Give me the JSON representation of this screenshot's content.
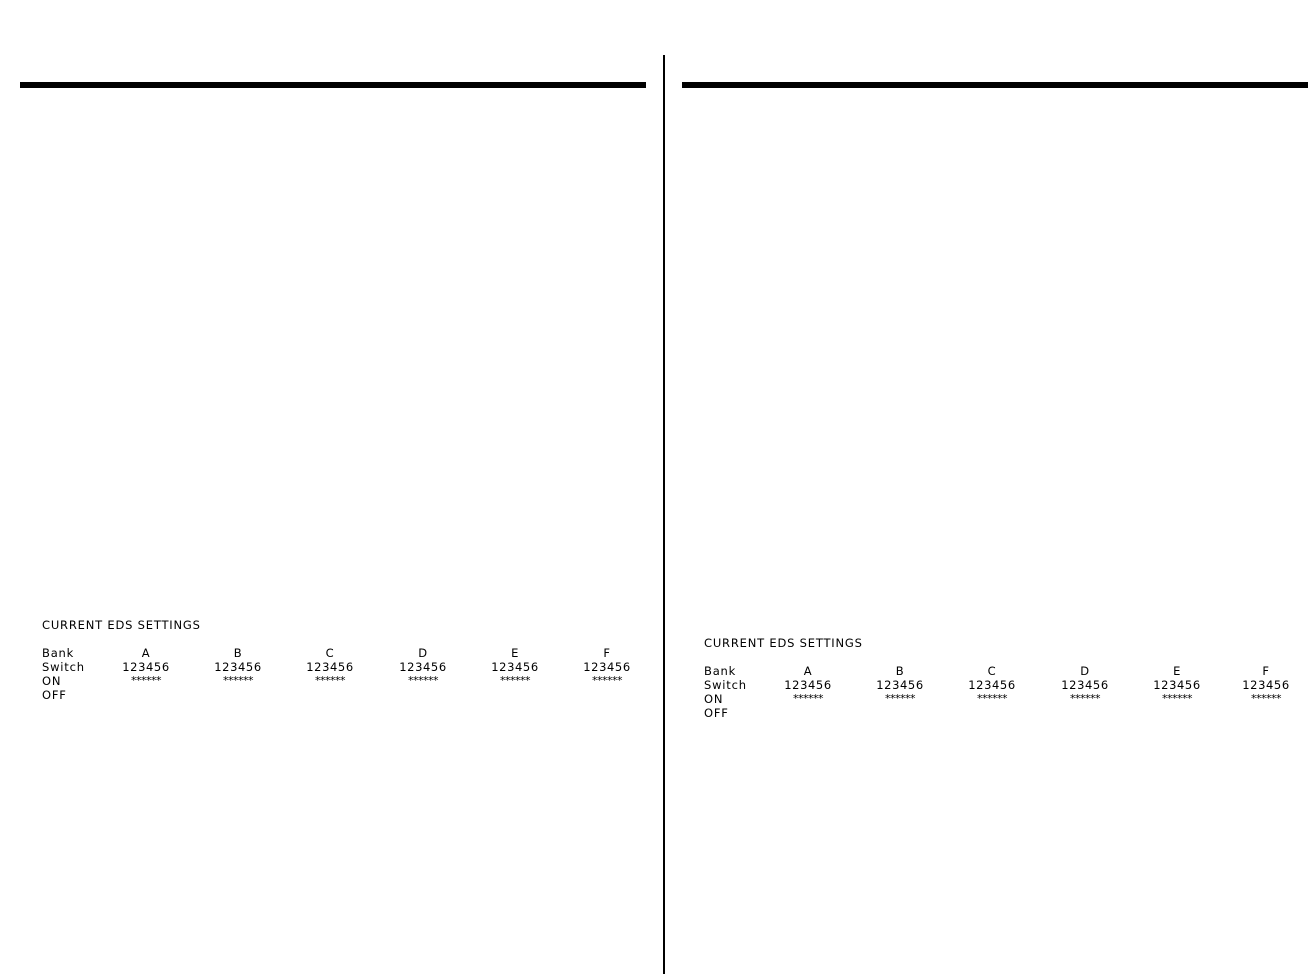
{
  "panels": [
    {
      "title": "CURRENT EDS SETTINGS",
      "row_labels": [
        "Bank",
        "Switch",
        "ON",
        "OFF"
      ],
      "banks": [
        {
          "name": "A",
          "switches": "123456",
          "on": "******"
        },
        {
          "name": "B",
          "switches": "123456",
          "on": "******"
        },
        {
          "name": "C",
          "switches": "123456",
          "on": "******"
        },
        {
          "name": "D",
          "switches": "123456",
          "on": "******"
        },
        {
          "name": "E",
          "switches": "123456",
          "on": "******"
        },
        {
          "name": "F",
          "switches": "123456",
          "on": "******"
        }
      ]
    },
    {
      "title": "CURRENT EDS SETTINGS",
      "row_labels": [
        "Bank",
        "Switch",
        "ON",
        "OFF"
      ],
      "banks": [
        {
          "name": "A",
          "switches": "123456",
          "on": "******"
        },
        {
          "name": "B",
          "switches": "123456",
          "on": "******"
        },
        {
          "name": "C",
          "switches": "123456",
          "on": "******"
        },
        {
          "name": "D",
          "switches": "123456",
          "on": "******"
        },
        {
          "name": "E",
          "switches": "123456",
          "on": "******"
        },
        {
          "name": "F",
          "switches": "123456",
          "on": "******"
        }
      ]
    }
  ]
}
